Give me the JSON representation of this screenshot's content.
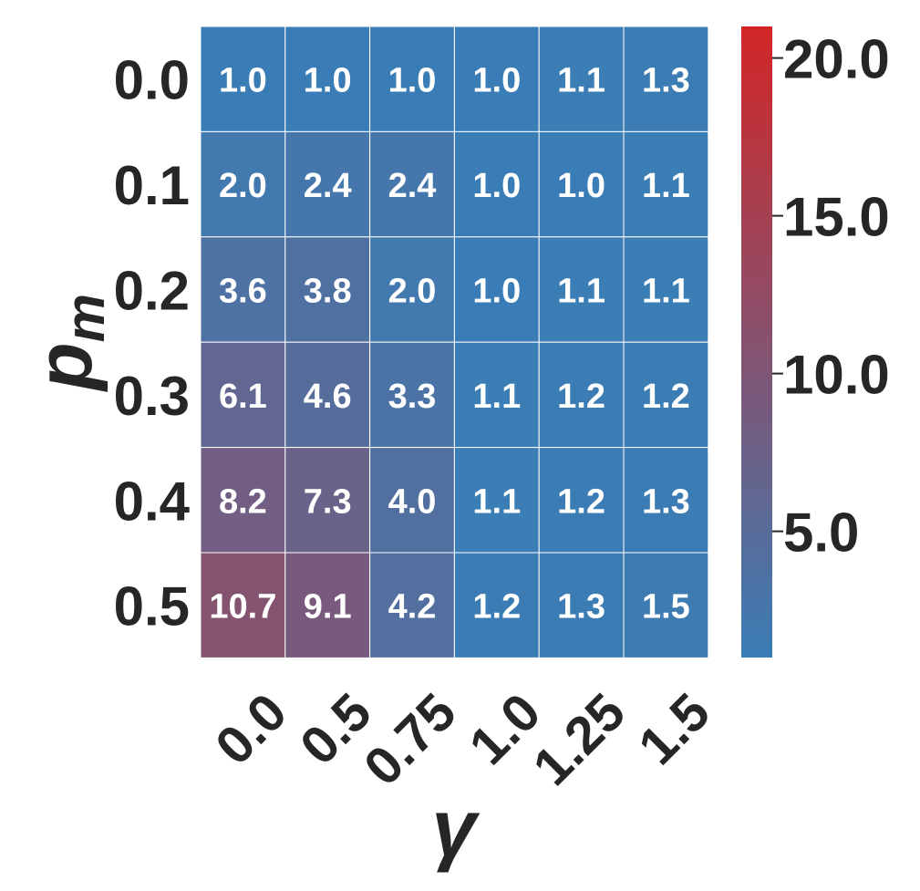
{
  "chart_data": {
    "type": "heatmap",
    "title": "",
    "xlabel": "γ",
    "ylabel": {
      "base": "p",
      "subscript": "m"
    },
    "x_categories": [
      "0.0",
      "0.5",
      "0.75",
      "1.0",
      "1.25",
      "1.5"
    ],
    "y_categories": [
      "0.0",
      "0.1",
      "0.2",
      "0.3",
      "0.4",
      "0.5"
    ],
    "values": [
      [
        1.0,
        1.0,
        1.0,
        1.0,
        1.1,
        1.3
      ],
      [
        2.0,
        2.4,
        2.4,
        1.0,
        1.0,
        1.1
      ],
      [
        3.6,
        3.8,
        2.0,
        1.0,
        1.1,
        1.1
      ],
      [
        6.1,
        4.6,
        3.3,
        1.1,
        1.2,
        1.2
      ],
      [
        8.2,
        7.3,
        4.0,
        1.1,
        1.2,
        1.3
      ],
      [
        10.7,
        9.1,
        4.2,
        1.2,
        1.3,
        1.5
      ]
    ],
    "cell_labels": [
      [
        "1.0",
        "1.0",
        "1.0",
        "1.0",
        "1.1",
        "1.3"
      ],
      [
        "2.0",
        "2.4",
        "2.4",
        "1.0",
        "1.0",
        "1.1"
      ],
      [
        "3.6",
        "3.8",
        "2.0",
        "1.0",
        "1.1",
        "1.1"
      ],
      [
        "6.1",
        "4.6",
        "3.3",
        "1.1",
        "1.2",
        "1.2"
      ],
      [
        "8.2",
        "7.3",
        "4.0",
        "1.1",
        "1.2",
        "1.3"
      ],
      [
        "10.7",
        "9.1",
        "4.2",
        "1.2",
        "1.3",
        "1.5"
      ]
    ],
    "colorbar": {
      "vmin": 1.0,
      "vmax": 21.0,
      "ticks": [
        5.0,
        10.0,
        15.0,
        20.0
      ],
      "tick_labels": [
        "5.0",
        "10.0",
        "15.0",
        "20.0"
      ],
      "color_low": "#3A7DB6",
      "color_high": "#D32626"
    },
    "cell_text_color": "#ffffff",
    "axis_text_color": "#262626",
    "grid_line_color": "#ffffff"
  }
}
